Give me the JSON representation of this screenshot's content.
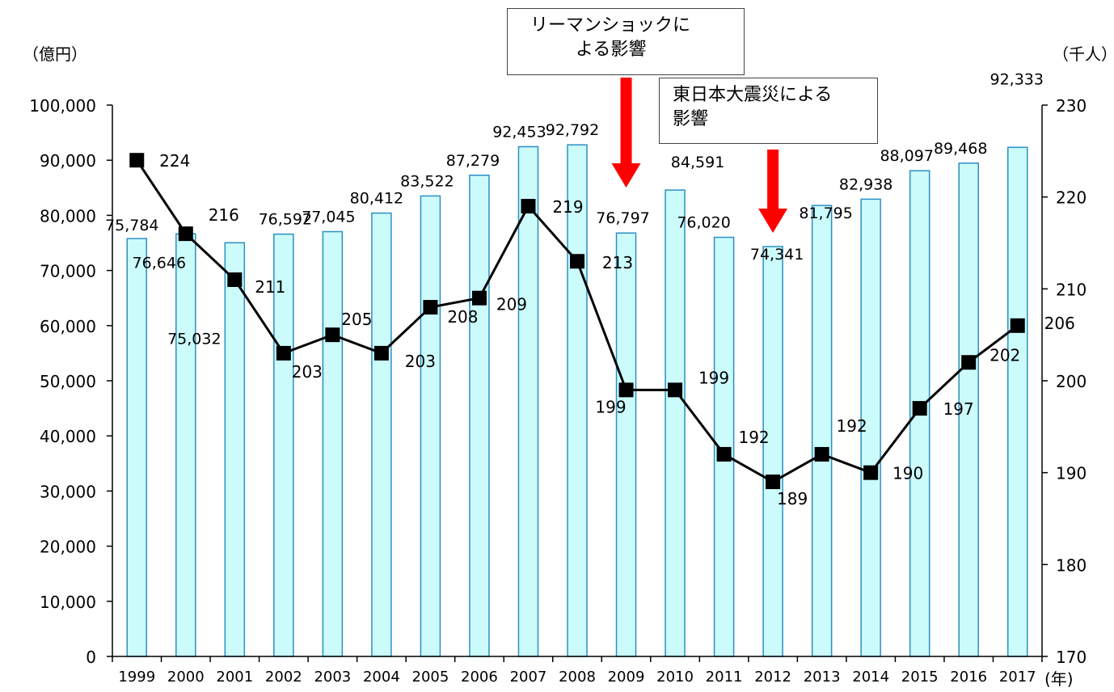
{
  "chart_data": {
    "type": "bar+line",
    "categories": [
      "1999",
      "2000",
      "2001",
      "2002",
      "2003",
      "2004",
      "2005",
      "2006",
      "2007",
      "2008",
      "2009",
      "2010",
      "2011",
      "2012",
      "2013",
      "2014",
      "2015",
      "2016",
      "2017"
    ],
    "series": [
      {
        "type": "bar",
        "axis": "left",
        "values": [
          75784,
          76646,
          75032,
          76592,
          77045,
          80412,
          83522,
          87279,
          92453,
          92792,
          76797,
          84591,
          76020,
          74341,
          81795,
          82938,
          88097,
          89468,
          92333
        ],
        "labels": [
          "75,784",
          "76,646",
          "75,032",
          "76,592",
          "77,045",
          "80,412",
          "83,522",
          "87,279",
          "92,453",
          "92,792",
          "76,797",
          "84,591",
          "76,020",
          "74,341",
          "81,795",
          "82,938",
          "88,097",
          "89,468",
          "92,333"
        ],
        "color": "#ccfbfb",
        "stroke": "#2b8fc4"
      },
      {
        "type": "line",
        "axis": "right",
        "values": [
          224,
          216,
          211,
          203,
          205,
          203,
          208,
          209,
          219,
          213,
          199,
          199,
          192,
          189,
          192,
          190,
          197,
          202,
          206
        ],
        "labels": [
          "224",
          "216",
          "211",
          "203",
          "205",
          "203",
          "208",
          "209",
          "219",
          "213",
          "199",
          "199",
          "192",
          "189",
          "192",
          "190",
          "197",
          "202",
          "206"
        ],
        "color": "#000000"
      }
    ],
    "y_left": {
      "unit_label": "（億円）",
      "min": 0,
      "max": 100000,
      "ticks": [
        "0",
        "10,000",
        "20,000",
        "30,000",
        "40,000",
        "50,000",
        "60,000",
        "70,000",
        "80,000",
        "90,000",
        "100,000"
      ]
    },
    "y_right": {
      "unit_label": "（千人）",
      "min": 170,
      "max": 230,
      "ticks": [
        "170",
        "180",
        "190",
        "200",
        "210",
        "220",
        "230"
      ]
    },
    "x_unit_label": "(年)",
    "annotations": [
      {
        "lines": [
          "リーマンショックに",
          "よる影響"
        ],
        "arrow_at": "2009"
      },
      {
        "lines": [
          "東日本大震災による",
          "影響"
        ],
        "arrow_at": "2012"
      }
    ],
    "arrow_color": "#ff0000",
    "grid": false
  }
}
